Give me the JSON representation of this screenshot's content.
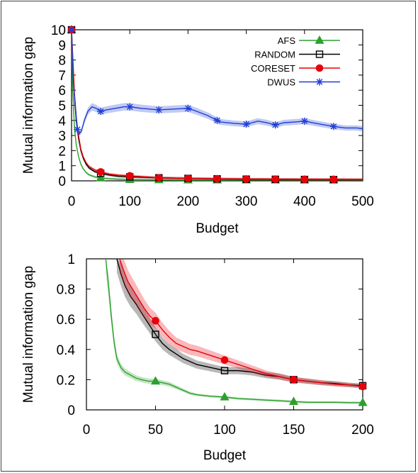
{
  "chart_data": [
    {
      "type": "line",
      "title": "",
      "xlabel": "Budget",
      "ylabel": "Mutual information gap",
      "xlim": [
        0,
        500
      ],
      "ylim": [
        0,
        10
      ],
      "xticks": [
        "0",
        "100",
        "200",
        "300",
        "400",
        "500"
      ],
      "yticks": [
        "0",
        "1",
        "2",
        "3",
        "4",
        "5",
        "6",
        "7",
        "8",
        "9",
        "10"
      ],
      "grid": false,
      "legend": "top-right",
      "series": [
        {
          "name": "AFS",
          "color": "#2ca02c",
          "marker": "triangle",
          "x": [
            0,
            2,
            5,
            8,
            12,
            16,
            20,
            25,
            30,
            40,
            50,
            65,
            80,
            100,
            150,
            200,
            250,
            300,
            350,
            400,
            450,
            500
          ],
          "values": [
            10,
            6.0,
            3.5,
            2.4,
            1.6,
            1.1,
            0.8,
            0.55,
            0.4,
            0.26,
            0.19,
            0.14,
            0.11,
            0.08,
            0.06,
            0.05,
            0.05,
            0.05,
            0.05,
            0.05,
            0.05,
            0.05
          ],
          "marker_x": [
            0,
            50,
            100,
            150,
            200,
            250,
            300,
            350,
            400,
            450
          ]
        },
        {
          "name": "RANDOM",
          "color": "#000000",
          "marker": "square",
          "x": [
            0,
            2,
            5,
            8,
            12,
            16,
            20,
            25,
            30,
            40,
            50,
            65,
            80,
            100,
            150,
            200,
            250,
            300,
            350,
            400,
            450,
            500
          ],
          "values": [
            10,
            8.0,
            5.5,
            4.0,
            2.8,
            2.0,
            1.5,
            1.1,
            0.85,
            0.6,
            0.5,
            0.38,
            0.3,
            0.26,
            0.2,
            0.16,
            0.13,
            0.11,
            0.1,
            0.09,
            0.085,
            0.08
          ],
          "marker_x": [
            0,
            50,
            100,
            150,
            200,
            250,
            300,
            350,
            400,
            450
          ]
        },
        {
          "name": "CORESET",
          "color": "#e8000b",
          "marker": "circle",
          "x": [
            0,
            2,
            5,
            8,
            12,
            16,
            20,
            25,
            30,
            40,
            50,
            65,
            80,
            100,
            150,
            200,
            250,
            300,
            350,
            400,
            450,
            500
          ],
          "values": [
            10,
            8.3,
            5.8,
            4.2,
            3.0,
            2.1,
            1.6,
            1.2,
            0.95,
            0.72,
            0.59,
            0.45,
            0.38,
            0.33,
            0.2,
            0.16,
            0.14,
            0.12,
            0.11,
            0.1,
            0.095,
            0.09
          ],
          "marker_x": [
            0,
            50,
            100,
            150,
            200,
            250,
            300,
            350,
            400,
            450
          ]
        },
        {
          "name": "DWUS",
          "color": "#1f3fd6",
          "marker": "asterisk",
          "x": [
            0,
            3,
            6,
            10,
            13,
            17,
            22,
            28,
            35,
            42,
            50,
            60,
            75,
            90,
            100,
            120,
            150,
            175,
            200,
            215,
            235,
            255,
            280,
            300,
            320,
            335,
            350,
            365,
            385,
            400,
            420,
            450,
            470,
            490,
            500
          ],
          "values": [
            10,
            6.5,
            5.2,
            3.4,
            3.1,
            3.3,
            4.0,
            4.6,
            4.9,
            4.8,
            4.6,
            4.7,
            4.8,
            4.9,
            4.9,
            4.8,
            4.7,
            4.75,
            4.8,
            4.6,
            4.3,
            3.9,
            3.8,
            3.75,
            3.95,
            3.85,
            3.7,
            3.85,
            3.9,
            3.95,
            3.8,
            3.6,
            3.5,
            3.5,
            3.45
          ],
          "marker_x": [
            0,
            10,
            50,
            100,
            150,
            200,
            250,
            300,
            350,
            400,
            450
          ]
        }
      ]
    },
    {
      "type": "line",
      "title": "",
      "xlabel": "Budget",
      "ylabel": "Mutual information gap",
      "xlim": [
        0,
        200
      ],
      "ylim": [
        0,
        1
      ],
      "xticks": [
        "0",
        "50",
        "100",
        "150",
        "200"
      ],
      "yticks": [
        "0",
        "0.2",
        "0.4",
        "0.6",
        "0.8",
        "1"
      ],
      "grid": false,
      "legend": "none",
      "series": [
        {
          "name": "AFS",
          "color": "#2ca02c",
          "marker": "triangle",
          "x": [
            14,
            16,
            18,
            20,
            22,
            25,
            28,
            32,
            36,
            40,
            45,
            50,
            55,
            60,
            65,
            70,
            75,
            80,
            90,
            100,
            110,
            120,
            130,
            140,
            150,
            160,
            170,
            180,
            190,
            200
          ],
          "values": [
            1.0,
            0.82,
            0.62,
            0.45,
            0.34,
            0.28,
            0.25,
            0.23,
            0.21,
            0.2,
            0.19,
            0.19,
            0.18,
            0.17,
            0.15,
            0.13,
            0.11,
            0.1,
            0.09,
            0.085,
            0.075,
            0.07,
            0.065,
            0.06,
            0.055,
            0.05,
            0.05,
            0.05,
            0.048,
            0.048
          ],
          "marker_x": [
            50,
            100,
            150,
            200
          ]
        },
        {
          "name": "RANDOM",
          "color": "#000000",
          "marker": "square",
          "x": [
            22,
            25,
            28,
            32,
            36,
            40,
            45,
            50,
            55,
            60,
            65,
            70,
            75,
            80,
            85,
            90,
            100,
            110,
            120,
            130,
            140,
            150,
            160,
            170,
            180,
            190,
            200
          ],
          "values": [
            1.0,
            0.9,
            0.82,
            0.75,
            0.7,
            0.64,
            0.57,
            0.5,
            0.44,
            0.4,
            0.37,
            0.34,
            0.32,
            0.3,
            0.29,
            0.28,
            0.26,
            0.26,
            0.25,
            0.23,
            0.22,
            0.2,
            0.19,
            0.18,
            0.175,
            0.165,
            0.16
          ],
          "marker_x": [
            50,
            100,
            150,
            200
          ]
        },
        {
          "name": "CORESET",
          "color": "#e8000b",
          "marker": "circle",
          "x": [
            24,
            27,
            30,
            34,
            38,
            42,
            46,
            50,
            55,
            60,
            65,
            70,
            75,
            80,
            90,
            100,
            110,
            120,
            130,
            140,
            150,
            160,
            170,
            180,
            190,
            200
          ],
          "values": [
            1.0,
            0.92,
            0.85,
            0.79,
            0.73,
            0.67,
            0.62,
            0.59,
            0.53,
            0.48,
            0.44,
            0.42,
            0.4,
            0.39,
            0.36,
            0.33,
            0.3,
            0.27,
            0.24,
            0.22,
            0.2,
            0.19,
            0.18,
            0.17,
            0.165,
            0.155
          ],
          "marker_x": [
            50,
            100,
            150,
            200
          ]
        }
      ]
    }
  ]
}
